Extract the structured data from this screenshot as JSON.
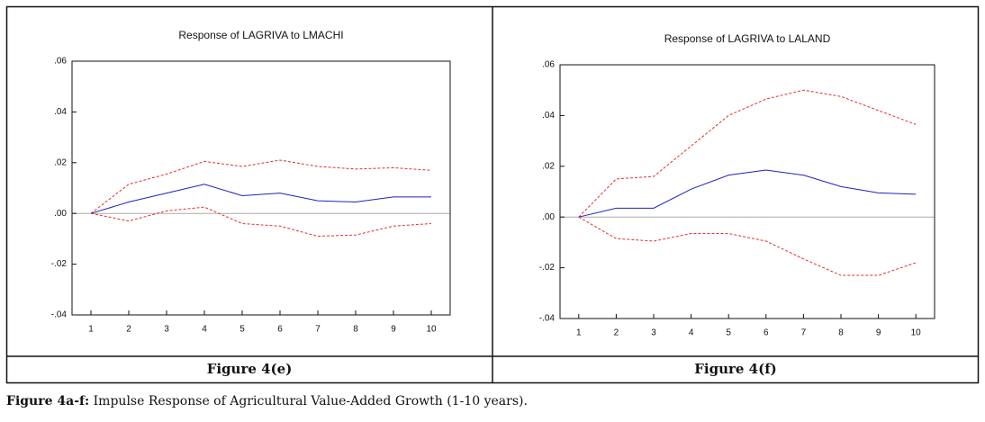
{
  "chart_data": [
    {
      "type": "line",
      "title": "Response of LAGRIVA to LMACHI",
      "x": [
        1,
        2,
        3,
        4,
        5,
        6,
        7,
        8,
        9,
        10
      ],
      "xlim": [
        0.5,
        10.5
      ],
      "xticks": [
        1,
        2,
        3,
        4,
        5,
        6,
        7,
        8,
        9,
        10
      ],
      "ylim": [
        -0.04,
        0.06
      ],
      "yticks": [
        {
          "value": -0.04,
          "label": "-.04"
        },
        {
          "value": -0.02,
          "label": "-.02"
        },
        {
          "value": 0,
          "label": ".00"
        },
        {
          "value": 0.02,
          "label": ".02"
        },
        {
          "value": 0.04,
          "label": ".04"
        },
        {
          "value": 0.06,
          "label": ".06"
        }
      ],
      "zero_line": true,
      "series": [
        {
          "color": "#e03030",
          "dashed": true,
          "values": [
            0,
            0.0115,
            0.0155,
            0.0205,
            0.0185,
            0.021,
            0.0185,
            0.0175,
            0.018,
            0.017
          ]
        },
        {
          "color": "#2020c0",
          "dashed": false,
          "values": [
            0,
            0.0045,
            0.008,
            0.0115,
            0.007,
            0.008,
            0.005,
            0.0045,
            0.0065,
            0.0065
          ]
        },
        {
          "color": "#e03030",
          "dashed": true,
          "values": [
            0,
            -0.003,
            0.001,
            0.0025,
            -0.004,
            -0.005,
            -0.009,
            -0.0085,
            -0.005,
            -0.004
          ]
        }
      ]
    },
    {
      "type": "line",
      "title": "Response of LAGRIVA to LALAND",
      "x": [
        1,
        2,
        3,
        4,
        5,
        6,
        7,
        8,
        9,
        10
      ],
      "xlim": [
        0.5,
        10.5
      ],
      "xticks": [
        1,
        2,
        3,
        4,
        5,
        6,
        7,
        8,
        9,
        10
      ],
      "ylim": [
        -0.04,
        0.06
      ],
      "yticks": [
        {
          "value": -0.04,
          "label": "-.04"
        },
        {
          "value": -0.02,
          "label": "-.02"
        },
        {
          "value": 0,
          "label": ".00"
        },
        {
          "value": 0.02,
          "label": ".02"
        },
        {
          "value": 0.04,
          "label": ".04"
        },
        {
          "value": 0.06,
          "label": ".06"
        }
      ],
      "zero_line": true,
      "series": [
        {
          "color": "#e03030",
          "dashed": true,
          "values": [
            0,
            0.015,
            0.016,
            0.028,
            0.04,
            0.0465,
            0.05,
            0.0475,
            0.042,
            0.0365
          ]
        },
        {
          "color": "#2020c0",
          "dashed": false,
          "values": [
            0,
            0.0035,
            0.0035,
            0.011,
            0.0165,
            0.0185,
            0.0165,
            0.012,
            0.0095,
            0.009
          ]
        },
        {
          "color": "#e03030",
          "dashed": true,
          "values": [
            0,
            -0.0085,
            -0.0095,
            -0.0065,
            -0.0065,
            -0.0095,
            -0.0165,
            -0.023,
            -0.023,
            -0.018
          ]
        }
      ]
    }
  ],
  "panel_labels": [
    "Figure 4(e)",
    "Figure 4(f)"
  ],
  "caption": {
    "label": "Figure 4a-f:",
    "text": "Impulse Response of Agricultural Value-Added Growth (1-10 years)."
  }
}
